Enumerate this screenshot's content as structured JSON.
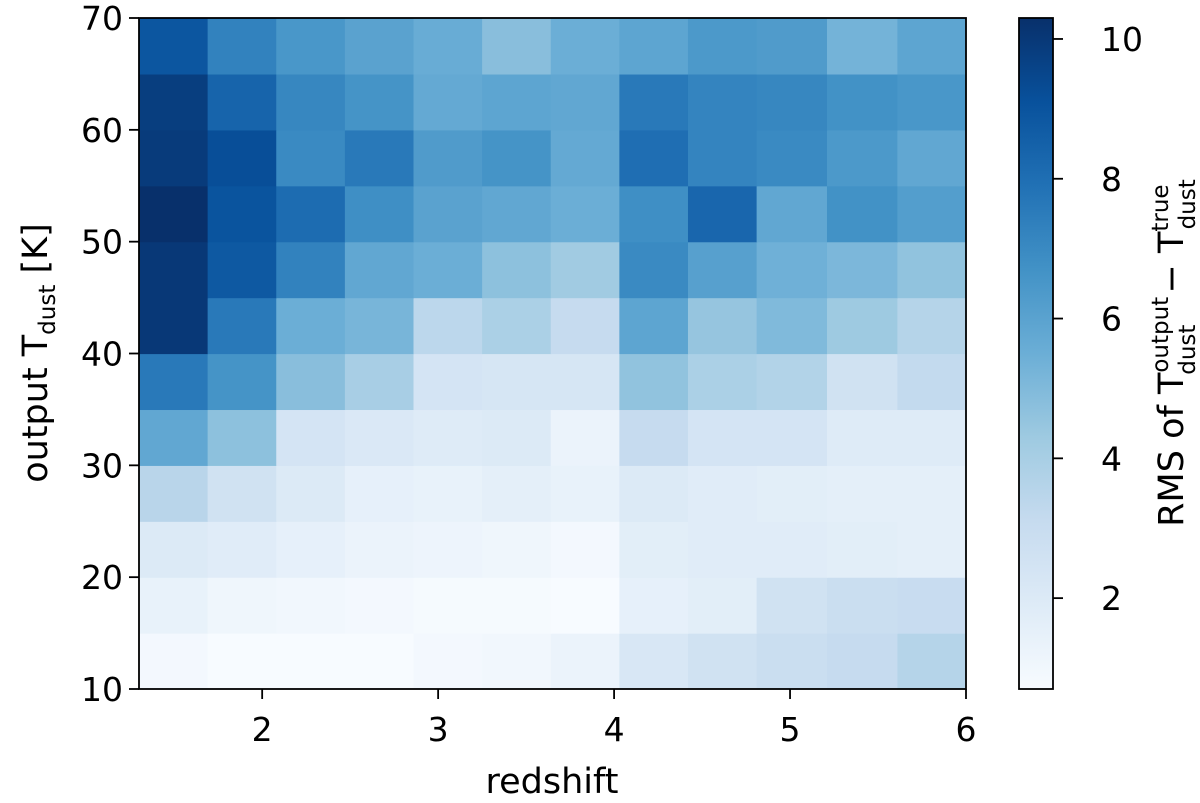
{
  "chart_data": {
    "type": "heatmap",
    "xlabel": "redshift",
    "ylabel_main": "output T",
    "ylabel_sub": "dust",
    "ylabel_unit": " [K]",
    "colorbar_label": {
      "prefix": "RMS of T",
      "term1_sup": "output",
      "term1_sub": "dust",
      "minus": " − T",
      "term2_sup": "true",
      "term2_sub": "dust"
    },
    "xlim": [
      1.3,
      6.0
    ],
    "ylim": [
      10,
      70
    ],
    "xticks": [
      2,
      3,
      4,
      5,
      6
    ],
    "yticks": [
      10,
      20,
      30,
      40,
      50,
      60,
      70
    ],
    "colorbar_ticks": [
      2,
      4,
      6,
      8,
      10
    ],
    "colorbar_range": [
      0.7,
      10.3
    ],
    "colormap": "Blues",
    "x_bin_edges": [
      1.3,
      1.69,
      2.08,
      2.47,
      2.86,
      3.25,
      3.64,
      4.03,
      4.42,
      4.81,
      5.21,
      5.61,
      6.0
    ],
    "y_bin_edges": [
      10,
      15,
      20,
      25,
      30,
      35,
      40,
      45,
      50,
      55,
      60,
      65,
      70
    ],
    "values": [
      [
        0.9,
        0.7,
        0.7,
        0.7,
        0.9,
        1.0,
        1.3,
        2.2,
        2.6,
        2.9,
        3.1,
        3.6
      ],
      [
        1.4,
        1.1,
        1.0,
        0.9,
        0.8,
        0.8,
        0.7,
        1.5,
        1.7,
        2.6,
        2.9,
        3.0
      ],
      [
        2.0,
        1.8,
        1.5,
        1.3,
        1.2,
        1.1,
        0.9,
        1.7,
        1.8,
        1.8,
        1.7,
        1.6
      ],
      [
        3.5,
        2.6,
        2.0,
        1.5,
        1.4,
        1.6,
        1.4,
        2.0,
        1.8,
        1.7,
        1.6,
        1.6
      ],
      [
        5.8,
        4.7,
        2.4,
        2.1,
        1.9,
        2.0,
        1.3,
        3.1,
        2.4,
        2.4,
        1.9,
        1.9
      ],
      [
        7.6,
        6.6,
        4.8,
        4.0,
        2.4,
        2.3,
        2.3,
        4.6,
        3.9,
        3.7,
        2.6,
        3.2
      ],
      [
        10.0,
        7.6,
        5.5,
        5.2,
        3.4,
        3.9,
        3.1,
        5.9,
        4.5,
        5.0,
        4.3,
        3.6
      ],
      [
        10.0,
        8.8,
        7.3,
        5.8,
        5.5,
        4.7,
        4.2,
        7.0,
        6.1,
        5.4,
        5.1,
        4.6
      ],
      [
        10.3,
        9.0,
        8.1,
        6.8,
        6.0,
        5.8,
        5.5,
        6.8,
        8.3,
        5.8,
        6.7,
        6.2
      ],
      [
        9.9,
        9.2,
        7.0,
        7.6,
        6.3,
        6.6,
        5.7,
        8.0,
        7.2,
        7.0,
        6.4,
        5.8
      ],
      [
        9.8,
        8.4,
        7.1,
        6.6,
        5.7,
        5.9,
        5.8,
        7.6,
        7.2,
        7.1,
        6.7,
        6.5
      ],
      [
        8.9,
        7.3,
        6.5,
        6.0,
        5.6,
        4.8,
        5.5,
        5.9,
        6.4,
        6.3,
        5.3,
        5.9
      ]
    ]
  }
}
